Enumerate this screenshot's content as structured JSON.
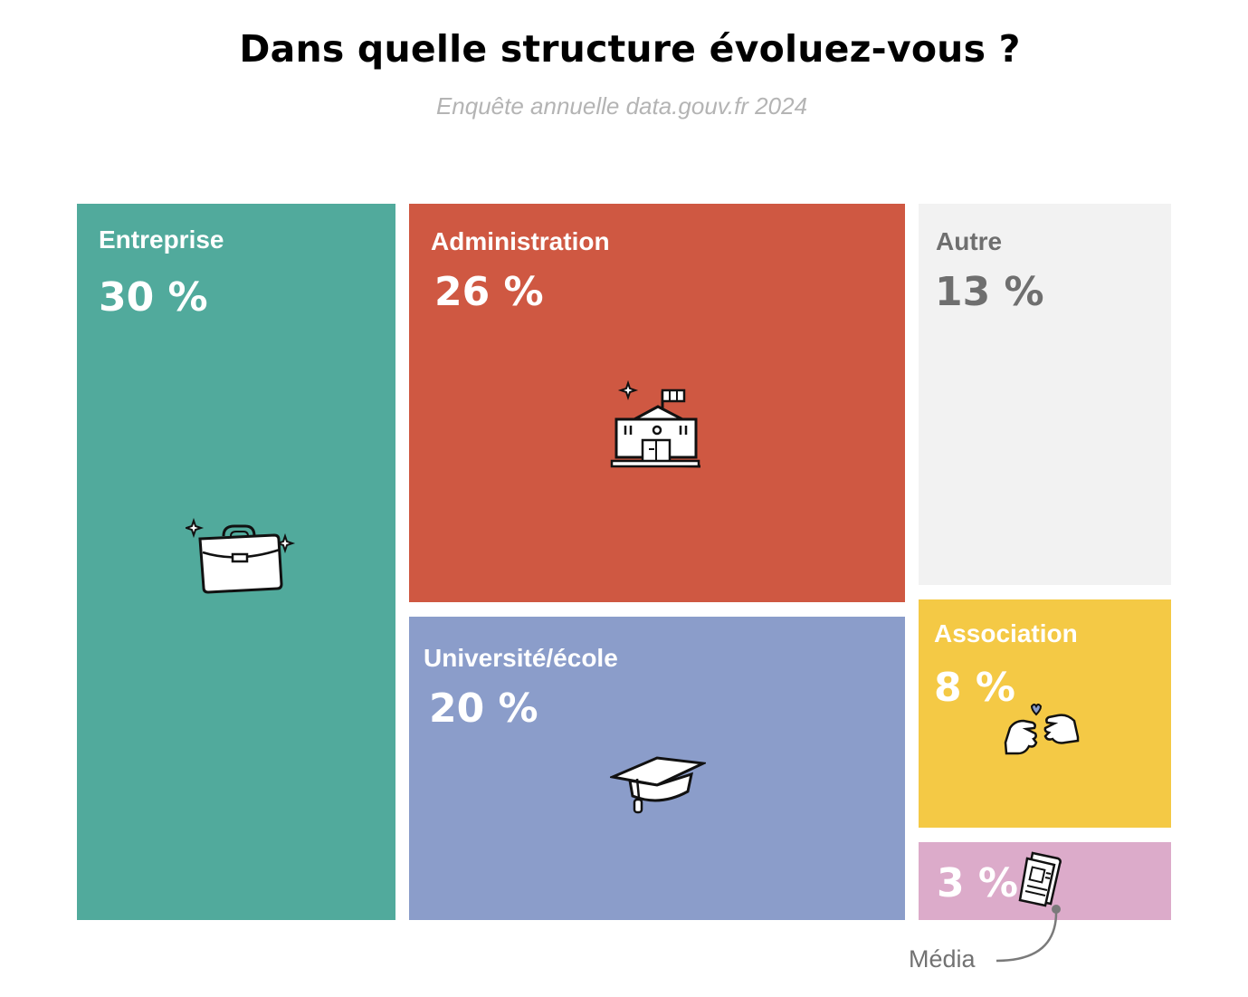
{
  "chart_data": {
    "type": "treemap",
    "title": "Dans quelle structure évoluez-vous ?",
    "subtitle": "Enquête annuelle data.gouv.fr 2024",
    "categories": [
      "Entreprise",
      "Administration",
      "Autre",
      "Université/école",
      "Association",
      "Média"
    ],
    "values": [
      30,
      26,
      13,
      20,
      8,
      3
    ],
    "value_labels": [
      "30 %",
      "26 %",
      "13 %",
      "20 %",
      "8 %",
      "3 %"
    ],
    "colors": [
      "#51aa9c",
      "#cf5842",
      "#f2f2f2",
      "#8b9dca",
      "#f4c945",
      "#dcabca"
    ],
    "icons": [
      "briefcase-icon",
      "city-hall-icon",
      "",
      "graduation-cap-icon",
      "helping-hands-icon",
      "newspaper-icon"
    ]
  }
}
